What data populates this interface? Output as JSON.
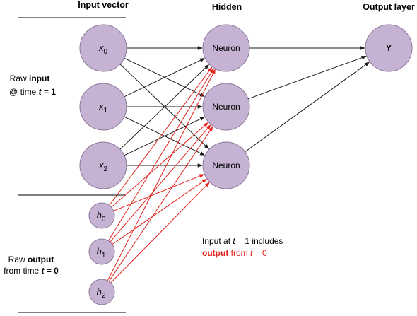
{
  "headers": {
    "input_vector": "Input vector",
    "hidden": "Hidden",
    "output_layer": "Output layer"
  },
  "inputs": [
    {
      "var": "x",
      "sub": "0"
    },
    {
      "var": "x",
      "sub": "1"
    },
    {
      "var": "x",
      "sub": "2"
    }
  ],
  "prev_outputs": [
    {
      "var": "h",
      "sub": "0"
    },
    {
      "var": "h",
      "sub": "1"
    },
    {
      "var": "h",
      "sub": "2"
    }
  ],
  "hidden": [
    {
      "label": "Neuron"
    },
    {
      "label": "Neuron"
    },
    {
      "label": "Neuron"
    }
  ],
  "output": {
    "label": "Y"
  },
  "side_labels": {
    "raw_input": {
      "line1_prefix": "Raw ",
      "line1_bold": "input",
      "line2_prefix": "@ time ",
      "line2_var": "t",
      "line2_suffix": " = 1"
    },
    "raw_output": {
      "line1_prefix": "Raw ",
      "line1_bold": "output",
      "line2_prefix": "from time ",
      "line2_var": "t",
      "line2_suffix": " = 0"
    }
  },
  "note": {
    "line1_prefix": "Input at ",
    "line1_var": "t",
    "line1_suffix": " = 1 includes",
    "line2_colored": "output",
    "line2_mid": " from ",
    "line2_var": "t",
    "line2_suffix": " = 0"
  },
  "colors": {
    "node_fill": "#c6b2d2",
    "node_stroke": "#8c7a99",
    "input_connection": "#1a1a1a",
    "recurrent_connection": "#e32119",
    "highlight_text": "#e32119"
  }
}
